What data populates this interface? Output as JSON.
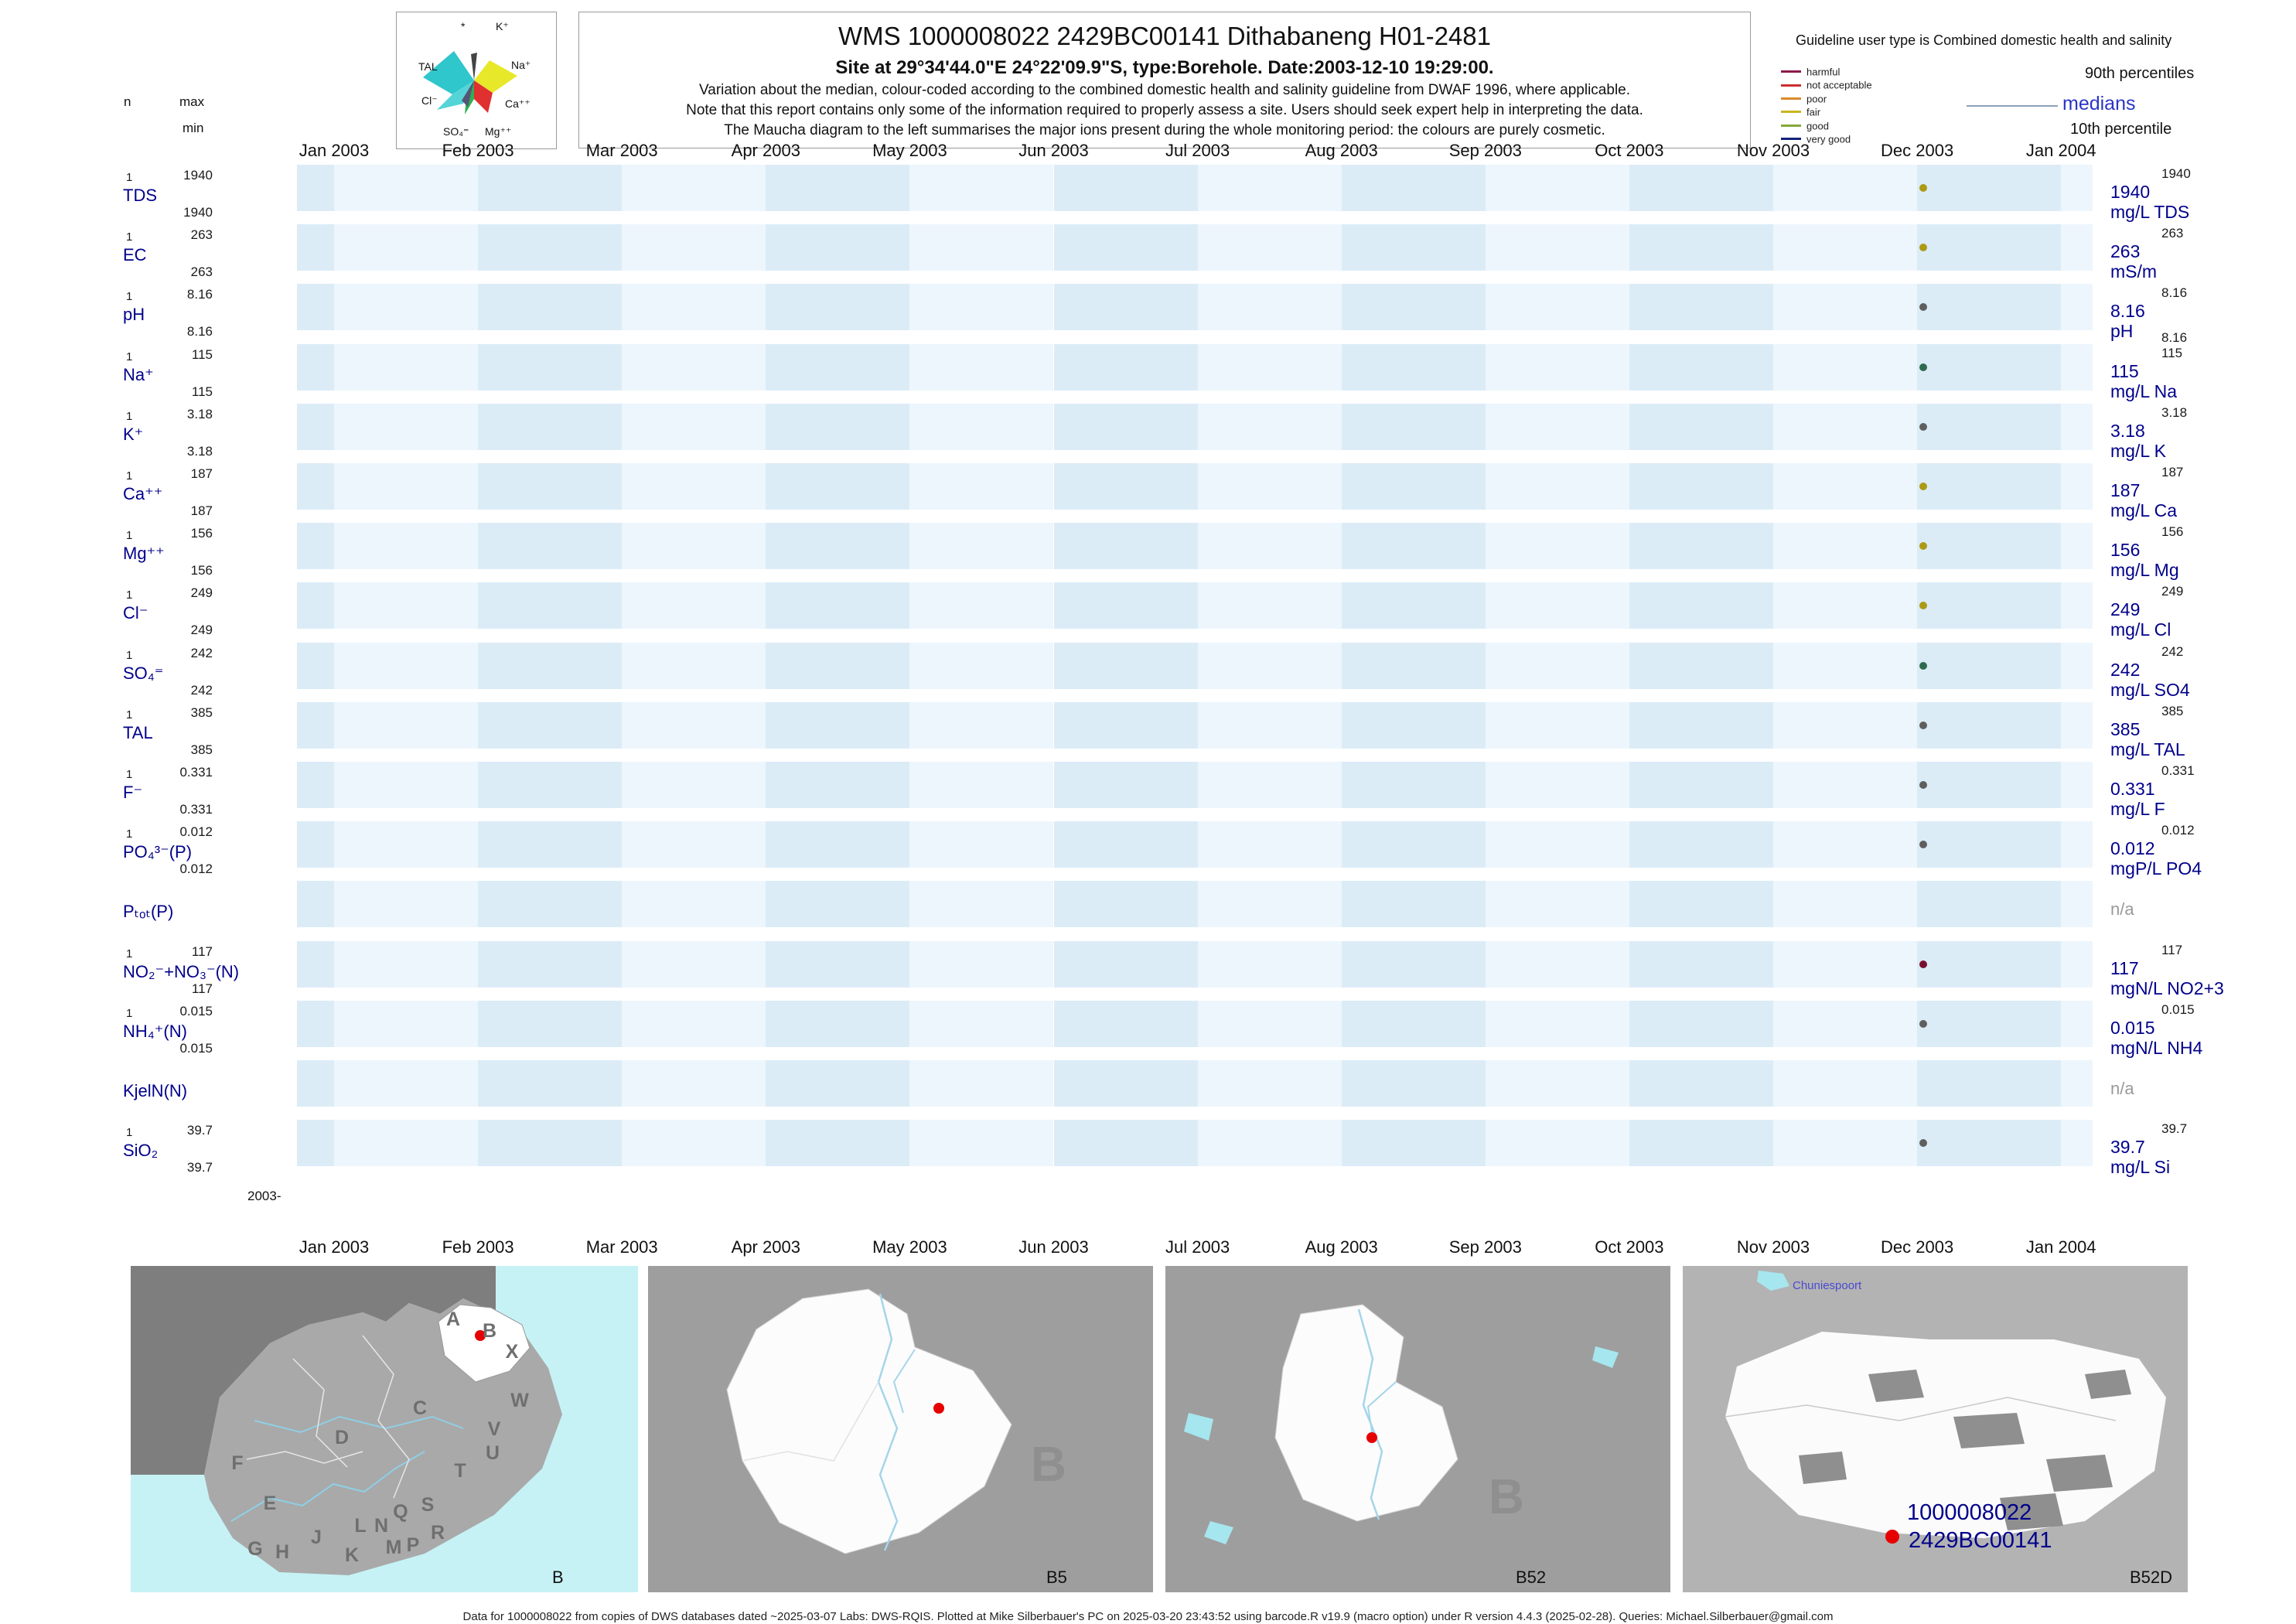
{
  "header": {
    "title": "WMS 1000008022 2429BC00141 Dithabaneng H01-2481",
    "subtitle": "Site at 29°34'44.0\"E 24°22'09.9\"S, type:Borehole. Date:2003-12-10 19:29:00.",
    "note1": "Variation about the median,  colour-coded according to the combined domestic health and salinity guideline from DWAF 1996, where applicable.",
    "note2": "Note that this report contains only some of the information required to properly assess a site. Users should seek expert help in interpreting the data.",
    "note3": "The Maucha diagram to the left summarises the major ions present during the whole monitoring period: the colours are purely cosmetic."
  },
  "maucha": {
    "labels": [
      "*",
      "K⁺",
      "TAL",
      "Na⁺",
      "Cl⁻",
      "Ca⁺⁺",
      "SO₄⁼",
      "Mg⁺⁺"
    ]
  },
  "legend": {
    "title": "Guideline user type is Combined domestic health and salinity",
    "classes": [
      {
        "label": "harmful",
        "color": "#8b1a4a"
      },
      {
        "label": "not acceptable",
        "color": "#cc2f2f"
      },
      {
        "label": "poor",
        "color": "#d98c2b"
      },
      {
        "label": "fair",
        "color": "#c9b51f"
      },
      {
        "label": "good",
        "color": "#86a83a"
      },
      {
        "label": "very good",
        "color": "#15227f"
      }
    ],
    "p90_label": "90th percentiles",
    "median_label": "medians",
    "p10_label": "10th percentile"
  },
  "axis": {
    "n": "n",
    "max": "max",
    "min": "min",
    "origin": "2003-",
    "months": [
      "Jan 2003",
      "Feb 2003",
      "Mar 2003",
      "Apr 2003",
      "May 2003",
      "Jun 2003",
      "Jul 2003",
      "Aug 2003",
      "Sep 2003",
      "Oct 2003",
      "Nov 2003",
      "Dec 2003",
      "Jan 2004"
    ]
  },
  "chart_data": {
    "type": "scatter",
    "title": "WMS 1000008022 2429BC00141 Dithabaneng H01-2481",
    "x_range": [
      "Jan 2003",
      "Jan 2004"
    ],
    "sample_date": "2003-12-10",
    "rows": [
      {
        "param": "TDS",
        "n": "1",
        "max": "1940",
        "min": "1940",
        "median": "1940",
        "p90": "1940",
        "unit": "mg/L TDS",
        "dot": "#ad9a14",
        "has_data": true
      },
      {
        "param": "EC",
        "n": "1",
        "max": "263",
        "min": "263",
        "median": "263",
        "p90": "263",
        "unit": "mS/m",
        "dot": "#ad9a14",
        "has_data": true
      },
      {
        "param": "pH",
        "n": "1",
        "max": "8.16",
        "min": "8.16",
        "median": "8.16",
        "p90": "8.16",
        "p10": "8.16",
        "unit": "pH",
        "dot": "#5f5f5f",
        "has_data": true
      },
      {
        "param": "Na⁺",
        "n": "1",
        "max": "115",
        "min": "115",
        "median": "115",
        "p90": "115",
        "unit": "mg/L Na",
        "dot": "#2e6b4f",
        "has_data": true
      },
      {
        "param": "K⁺",
        "n": "1",
        "max": "3.18",
        "min": "3.18",
        "median": "3.18",
        "p90": "3.18",
        "unit": "mg/L K",
        "dot": "#5f5f5f",
        "has_data": true
      },
      {
        "param": "Ca⁺⁺",
        "n": "1",
        "max": "187",
        "min": "187",
        "median": "187",
        "p90": "187",
        "unit": "mg/L Ca",
        "dot": "#ad9a14",
        "has_data": true
      },
      {
        "param": "Mg⁺⁺",
        "n": "1",
        "max": "156",
        "min": "156",
        "median": "156",
        "p90": "156",
        "unit": "mg/L Mg",
        "dot": "#ad9a14",
        "has_data": true
      },
      {
        "param": "Cl⁻",
        "n": "1",
        "max": "249",
        "min": "249",
        "median": "249",
        "p90": "249",
        "unit": "mg/L Cl",
        "dot": "#ad9a14",
        "has_data": true
      },
      {
        "param": "SO₄⁼",
        "n": "1",
        "max": "242",
        "min": "242",
        "median": "242",
        "p90": "242",
        "unit": "mg/L SO4",
        "dot": "#2e6b4f",
        "has_data": true
      },
      {
        "param": "TAL",
        "n": "1",
        "max": "385",
        "min": "385",
        "median": "385",
        "p90": "385",
        "unit": "mg/L TAL",
        "dot": "#5f5f5f",
        "has_data": true
      },
      {
        "param": "F⁻",
        "n": "1",
        "max": "0.331",
        "min": "0.331",
        "median": "0.331",
        "p90": "0.331",
        "unit": "mg/L F",
        "dot": "#5f5f5f",
        "has_data": true
      },
      {
        "param": "PO₄³⁻(P)",
        "n": "1",
        "max": "0.012",
        "min": "0.012",
        "median": "0.012",
        "p90": "0.012",
        "unit": "mgP/L PO4",
        "dot": "#5f5f5f",
        "has_data": true
      },
      {
        "param": "Pₜₒₜ(P)",
        "na": "n/a",
        "has_data": false
      },
      {
        "param": "NO₂⁻+NO₃⁻(N)",
        "n": "1",
        "max": "117",
        "min": "117",
        "median": "117",
        "p90": "117",
        "unit": "mgN/L NO2+3",
        "dot": "#7a1030",
        "has_data": true
      },
      {
        "param": "NH₄⁺(N)",
        "n": "1",
        "max": "0.015",
        "min": "0.015",
        "median": "0.015",
        "p90": "0.015",
        "unit": "mgN/L NH4",
        "dot": "#5f5f5f",
        "has_data": true
      },
      {
        "param": "KjelN(N)",
        "na": "n/a",
        "has_data": false
      },
      {
        "param": "SiO₂",
        "n": "1",
        "max": "39.7",
        "min": "39.7",
        "median": "39.7",
        "p90": "39.7",
        "unit": "mg/L Si",
        "dot": "#5f5f5f",
        "has_data": true
      }
    ]
  },
  "maps": {
    "overview": {
      "label": "B",
      "letters": [
        "A",
        "B",
        "X",
        "C",
        "W",
        "V",
        "D",
        "U",
        "T",
        "F",
        "S",
        "Q",
        "E",
        "R",
        "L",
        "N",
        "J",
        "M",
        "G",
        "H",
        "K",
        "P"
      ]
    },
    "primary": {
      "label": "B5",
      "letter": "B"
    },
    "secondary": {
      "label": "B52",
      "letter": "B"
    },
    "detail": {
      "label": "B52D",
      "place": "Chuniespoort",
      "site_line1": "1000008022",
      "site_line2": "2429BC00141"
    }
  },
  "footer": "Data for 1000008022 from copies of DWS databases dated ~2025-03-07 Labs: DWS-RQIS. Plotted at Mike Silberbauer's PC on 2025-03-20 23:43:52 using barcode.R v19.9 (macro option) under R version 4.4.3 (2025-02-28). Queries: Michael.Silberbauer@gmail.com"
}
